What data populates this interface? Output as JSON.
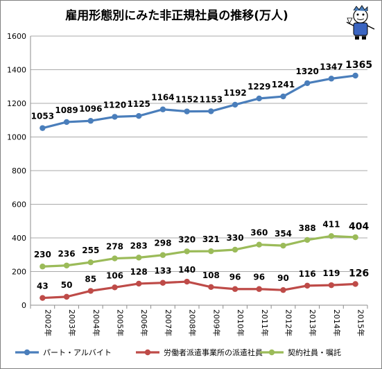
{
  "chart_data": {
    "type": "line",
    "title": "雇用形態別にみた非正規社員の推移(万人)",
    "x": [
      "2002年",
      "2003年",
      "2004年",
      "2005年",
      "2006年",
      "2007年",
      "2008年",
      "2009年",
      "2010年",
      "2011年",
      "2012年",
      "2013年",
      "2014年",
      "2015年"
    ],
    "ylim": [
      0,
      1600
    ],
    "yticks": [
      0,
      200,
      400,
      600,
      800,
      1000,
      1200,
      1400,
      1600
    ],
    "grid": true,
    "legend_position": "bottom",
    "series": [
      {
        "name": "パート・アルバイト",
        "color": "#4a7ebb",
        "values": [
          1053,
          1089,
          1096,
          1120,
          1125,
          1164,
          1152,
          1153,
          1192,
          1229,
          1241,
          1320,
          1347,
          1365
        ]
      },
      {
        "name": "労働者派遣事業所の派遣社員",
        "color": "#be4b48",
        "values": [
          43,
          50,
          85,
          106,
          128,
          133,
          140,
          108,
          96,
          96,
          90,
          116,
          119,
          126
        ]
      },
      {
        "name": "契約社員・嘱託",
        "color": "#9bbb59",
        "values": [
          230,
          236,
          255,
          278,
          283,
          298,
          320,
          321,
          330,
          360,
          354,
          388,
          411,
          404
        ]
      }
    ]
  }
}
